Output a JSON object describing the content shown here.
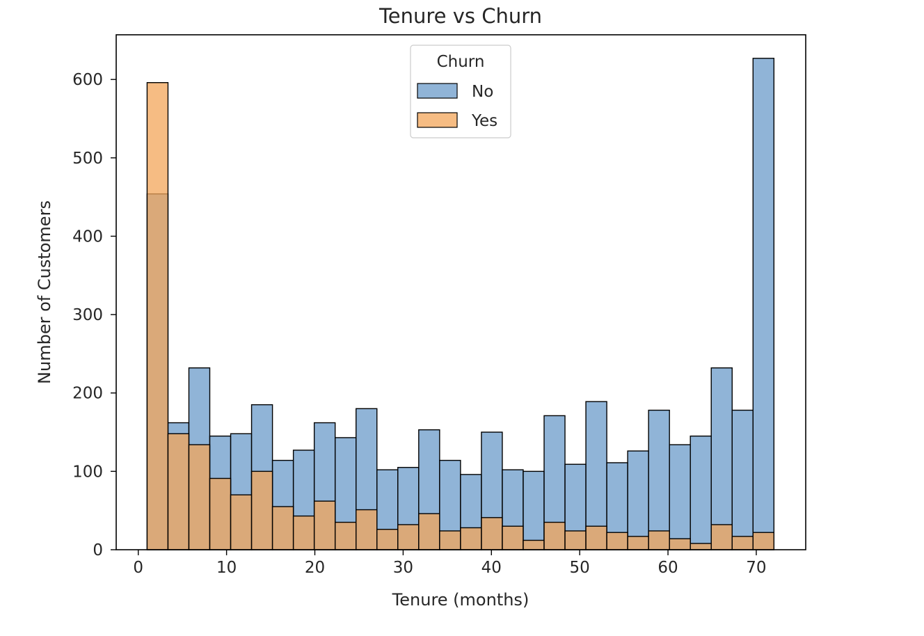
{
  "chart_data": {
    "type": "bar",
    "title": "Tenure vs Churn",
    "xlabel": "Tenure (months)",
    "ylabel": "Number of Customers",
    "xlim": [
      -2.5,
      75.6
    ],
    "ylim": [
      0,
      657
    ],
    "xticks": [
      0,
      10,
      20,
      30,
      40,
      50,
      60,
      70
    ],
    "yticks": [
      0,
      100,
      200,
      300,
      400,
      500,
      600
    ],
    "bin_edges": [
      1.0,
      3.367,
      5.733,
      8.1,
      10.467,
      12.833,
      15.2,
      17.567,
      19.933,
      22.3,
      24.667,
      27.033,
      29.4,
      31.767,
      34.133,
      36.5,
      38.867,
      41.233,
      43.6,
      45.967,
      48.333,
      50.7,
      53.067,
      55.433,
      57.8,
      60.167,
      62.533,
      64.9,
      67.267,
      69.633,
      72.0
    ],
    "grid": false,
    "legend": {
      "title": "Churn",
      "placement": "upper center"
    },
    "series": [
      {
        "name": "No",
        "color": "#6b9bc9",
        "values": [
          454,
          162,
          232,
          145,
          148,
          185,
          114,
          127,
          162,
          143,
          180,
          102,
          105,
          153,
          114,
          96,
          150,
          102,
          100,
          171,
          109,
          189,
          111,
          126,
          178,
          134,
          145,
          232,
          178,
          627
        ]
      },
      {
        "name": "Yes",
        "color": "#f3a65a",
        "values": [
          596,
          148,
          134,
          91,
          70,
          100,
          55,
          43,
          62,
          35,
          51,
          26,
          32,
          46,
          24,
          28,
          41,
          30,
          12,
          35,
          24,
          30,
          22,
          17,
          24,
          14,
          8,
          32,
          17,
          22
        ]
      }
    ]
  }
}
